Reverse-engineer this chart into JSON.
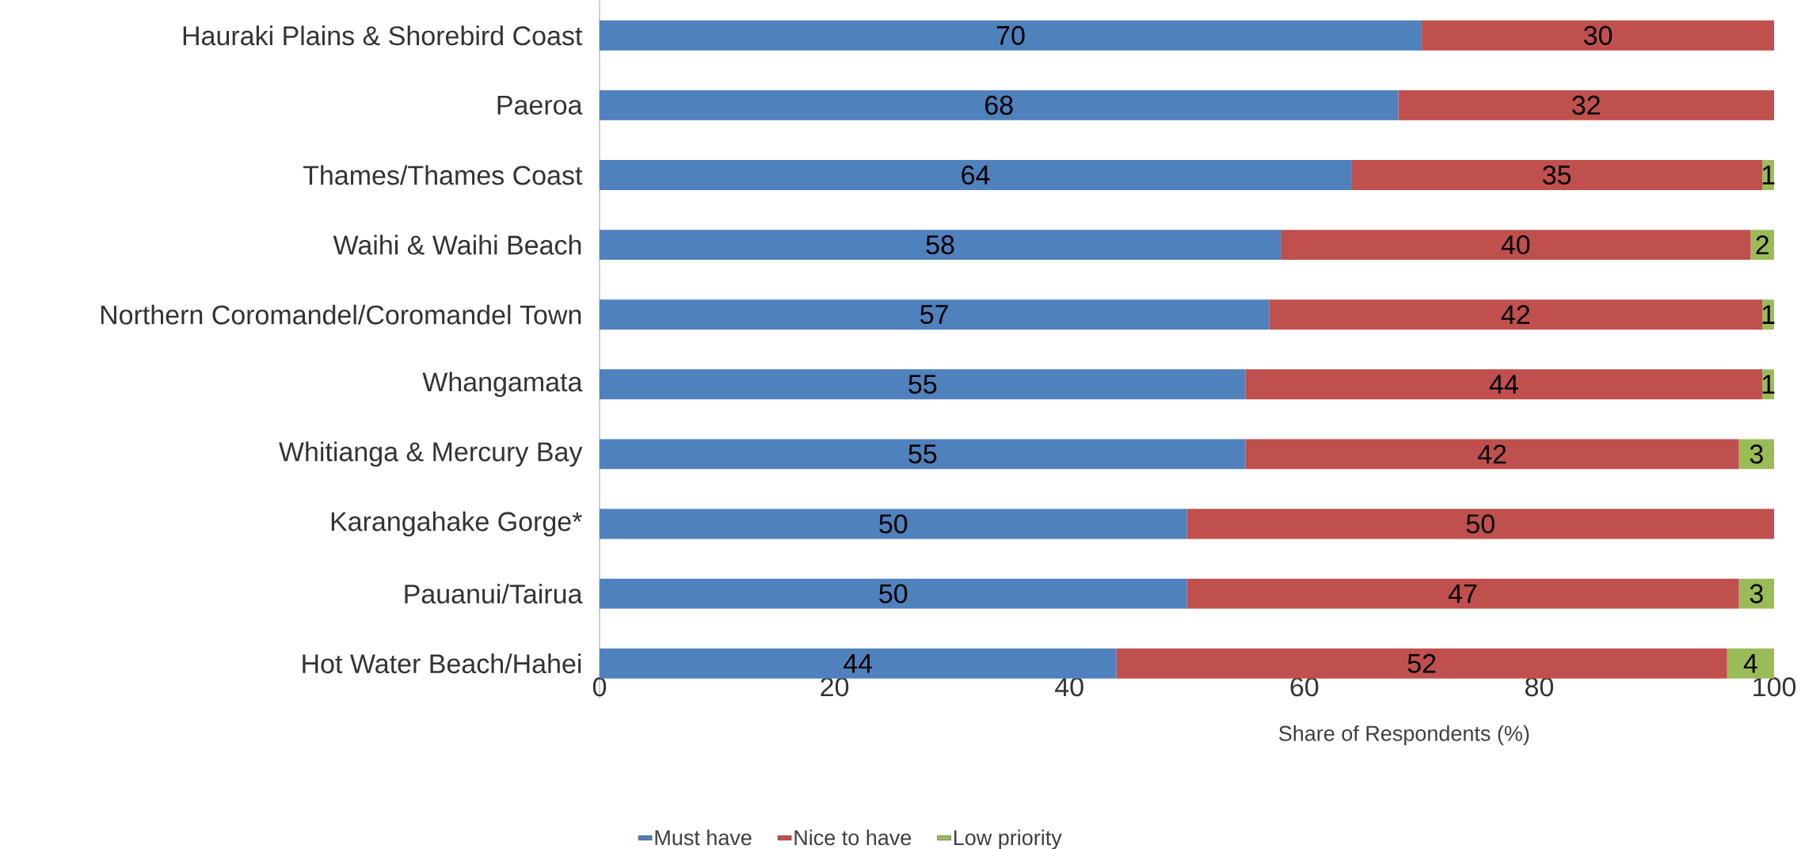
{
  "chart_data": {
    "type": "bar",
    "orientation": "horizontal",
    "stacked": true,
    "data_labels": true,
    "xlabel": "Share of Respondents (%)",
    "legend": "bottom",
    "grid": false,
    "categories": [
      "Hauraki Plains & Shorebird Coast",
      "Paeroa",
      "Thames/Thames Coast",
      "Waihi & Waihi Beach",
      "Northern Coromandel/Coromandel Town",
      "Whangamata",
      "Whitianga & Mercury Bay",
      "Karangahake Gorge*",
      "Pauanui/Tairua",
      "Hot Water Beach/Hahei"
    ],
    "xlim": [
      0,
      100
    ],
    "xticks": [
      0,
      20,
      40,
      60,
      80,
      100
    ],
    "series": [
      {
        "name": "Must have",
        "color": "#4f81bd",
        "values": [
          70,
          68,
          64,
          58,
          57,
          55,
          55,
          50,
          50,
          44
        ]
      },
      {
        "name": "Nice to have",
        "color": "#c0504d",
        "values": [
          30,
          32,
          35,
          40,
          42,
          44,
          42,
          50,
          47,
          52
        ]
      },
      {
        "name": "Low priority",
        "color": "#9bbb59",
        "values": [
          null,
          null,
          1,
          2,
          1,
          1,
          3,
          null,
          3,
          4
        ]
      }
    ]
  }
}
